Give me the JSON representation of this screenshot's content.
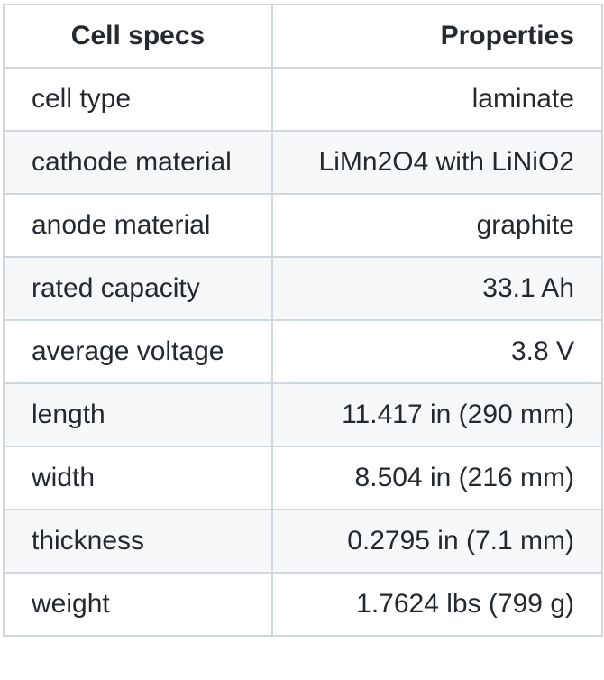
{
  "table": {
    "headers": [
      "Cell specs",
      "Properties"
    ],
    "rows": [
      [
        "cell type",
        "laminate"
      ],
      [
        "cathode material",
        "LiMn2O4 with LiNiO2"
      ],
      [
        "anode material",
        "graphite"
      ],
      [
        "rated capacity",
        "33.1 Ah"
      ],
      [
        "average voltage",
        "3.8 V"
      ],
      [
        "length",
        "11.417 in (290 mm)"
      ],
      [
        "width",
        "8.504 in (216 mm)"
      ],
      [
        "thickness",
        "0.2795 in (7.1 mm)"
      ],
      [
        "weight",
        "1.7624 lbs (799 g)"
      ]
    ]
  }
}
